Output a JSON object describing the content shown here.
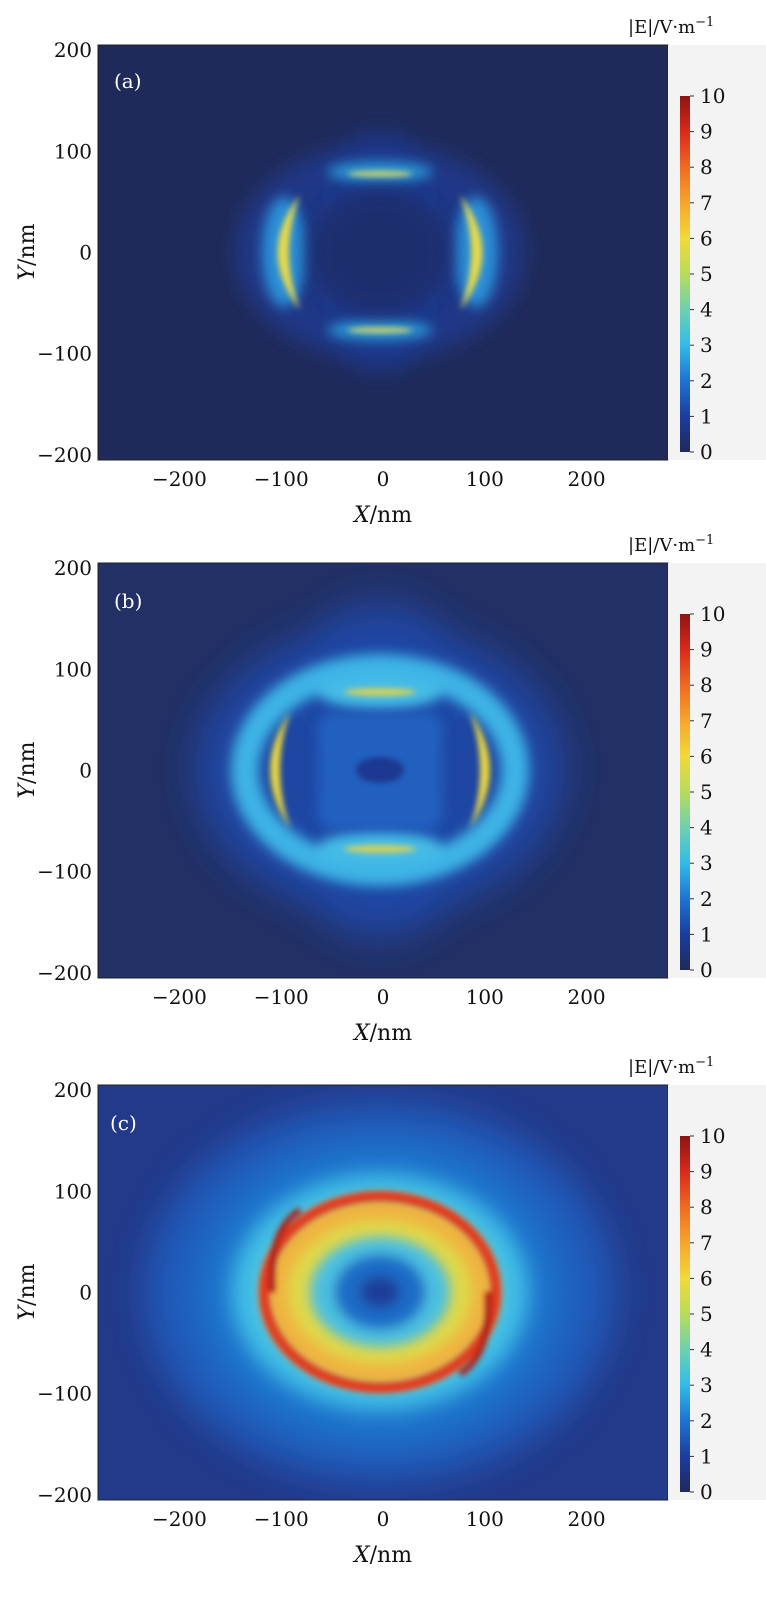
{
  "chart_data": [
    {
      "type": "heatmap",
      "panel_label": "(a)",
      "x_ticks": [
        -200,
        -100,
        0,
        100,
        200
      ],
      "y_ticks": [
        200,
        100,
        0,
        -100,
        -200
      ],
      "x_tick_labels": [
        "−200",
        "−100",
        "0",
        "100",
        "200"
      ],
      "y_tick_labels": [
        "200",
        "100",
        "0",
        "−100",
        "−200"
      ],
      "xlim": [
        -280,
        280
      ],
      "ylim": [
        -205,
        205
      ],
      "xlabel_var": "X",
      "xlabel_unit": "/nm",
      "ylabel_var": "Y",
      "ylabel_unit": "/nm",
      "colorbar": {
        "label_var": "|E|",
        "label_unit": "/V·m",
        "label_exp": "−1",
        "range": [
          0,
          10
        ],
        "ticks": [
          "0",
          "1",
          "2",
          "3",
          "4",
          "5",
          "6",
          "7",
          "8",
          "9",
          "10"
        ]
      },
      "field_description_values": {
        "background": 0.3,
        "side_crescent_peak": 6.2,
        "top_bottom_cap_peak": 5.8,
        "center_min": 0.2
      }
    },
    {
      "type": "heatmap",
      "panel_label": "(b)",
      "x_ticks": [
        -200,
        -100,
        0,
        100,
        200
      ],
      "y_ticks": [
        200,
        100,
        0,
        -100,
        -200
      ],
      "x_tick_labels": [
        "−200",
        "−100",
        "0",
        "100",
        "200"
      ],
      "y_tick_labels": [
        "200",
        "100",
        "0",
        "−100",
        "−200"
      ],
      "xlim": [
        -280,
        280
      ],
      "ylim": [
        -205,
        205
      ],
      "xlabel_var": "X",
      "xlabel_unit": "/nm",
      "ylabel_var": "Y",
      "ylabel_unit": "/nm",
      "colorbar": {
        "label_var": "|E|",
        "label_unit": "/V·m",
        "label_exp": "−1",
        "range": [
          0,
          10
        ],
        "ticks": [
          "0",
          "1",
          "2",
          "3",
          "4",
          "5",
          "6",
          "7",
          "8",
          "9",
          "10"
        ]
      },
      "field_description_values": {
        "background": 0.5,
        "side_crescent_peak": 6.5,
        "top_bottom_cap_peak": 6.0,
        "center_min": 0.3
      }
    },
    {
      "type": "heatmap",
      "panel_label": "(c)",
      "x_ticks": [
        -200,
        -100,
        0,
        100,
        200
      ],
      "y_ticks": [
        200,
        100,
        0,
        -100,
        -200
      ],
      "x_tick_labels": [
        "−200",
        "−100",
        "0",
        "100",
        "200"
      ],
      "y_tick_labels": [
        "200",
        "100",
        "0",
        "−100",
        "−200"
      ],
      "xlim": [
        -280,
        280
      ],
      "ylim": [
        -205,
        205
      ],
      "xlabel_var": "X",
      "xlabel_unit": "/nm",
      "ylabel_var": "Y",
      "ylabel_unit": "/nm",
      "colorbar": {
        "label_var": "|E|",
        "label_unit": "/V·m",
        "label_exp": "−1",
        "range": [
          0,
          10
        ],
        "ticks": [
          "0",
          "1",
          "2",
          "3",
          "4",
          "5",
          "6",
          "7",
          "8",
          "9",
          "10"
        ]
      },
      "field_description_values": {
        "background": 1.0,
        "ring_peak": 9.5,
        "inner_ring": 5.5,
        "center_min": 0.3
      }
    }
  ],
  "colors": {
    "c0": "#202a5a",
    "c1": "#1b3d9f",
    "c2": "#1e74d2",
    "c3": "#33bbe8",
    "c4": "#6ed0b0",
    "c5": "#b7dc5a",
    "c6": "#f0d93a",
    "c7": "#f7a52c",
    "c8": "#ef6a22",
    "c9": "#d92a1b",
    "c10": "#8e1414",
    "cbar_bg": "#f3f3f3"
  }
}
